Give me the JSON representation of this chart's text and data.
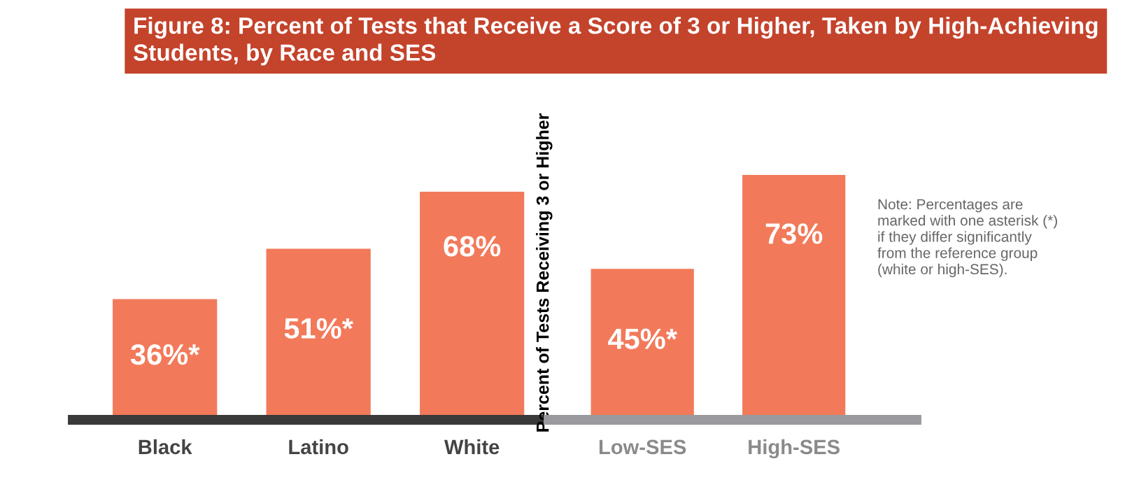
{
  "chart_data": [
    {
      "type": "bar",
      "title": "Figure 8: Percent of Tests that Receive a Score of 3 or Higher, Taken by High-Achieving Students, by Race and SES",
      "categories": [
        "Black",
        "Latino",
        "White"
      ],
      "values": [
        36,
        51,
        68
      ],
      "value_labels": [
        "36%*",
        "51%*",
        "68%"
      ],
      "color": "#f27a5a",
      "tick_labels": "x",
      "grid": false,
      "legend": false
    },
    {
      "type": "bar",
      "ylabel": "Percent of Tests Receiving 3 or Higher",
      "categories": [
        "Low-SES",
        "High-SES"
      ],
      "values": [
        45,
        73
      ],
      "value_labels": [
        "45%*",
        "73%"
      ],
      "color": "#f27a5a",
      "tick_labels": "x",
      "grid": false,
      "legend": false,
      "annotations": [
        "Note: Percentages are\nmarked with one asterisk (*)\nif they differ significantly\nfrom the reference group\n(white or high-SES)."
      ]
    }
  ]
}
